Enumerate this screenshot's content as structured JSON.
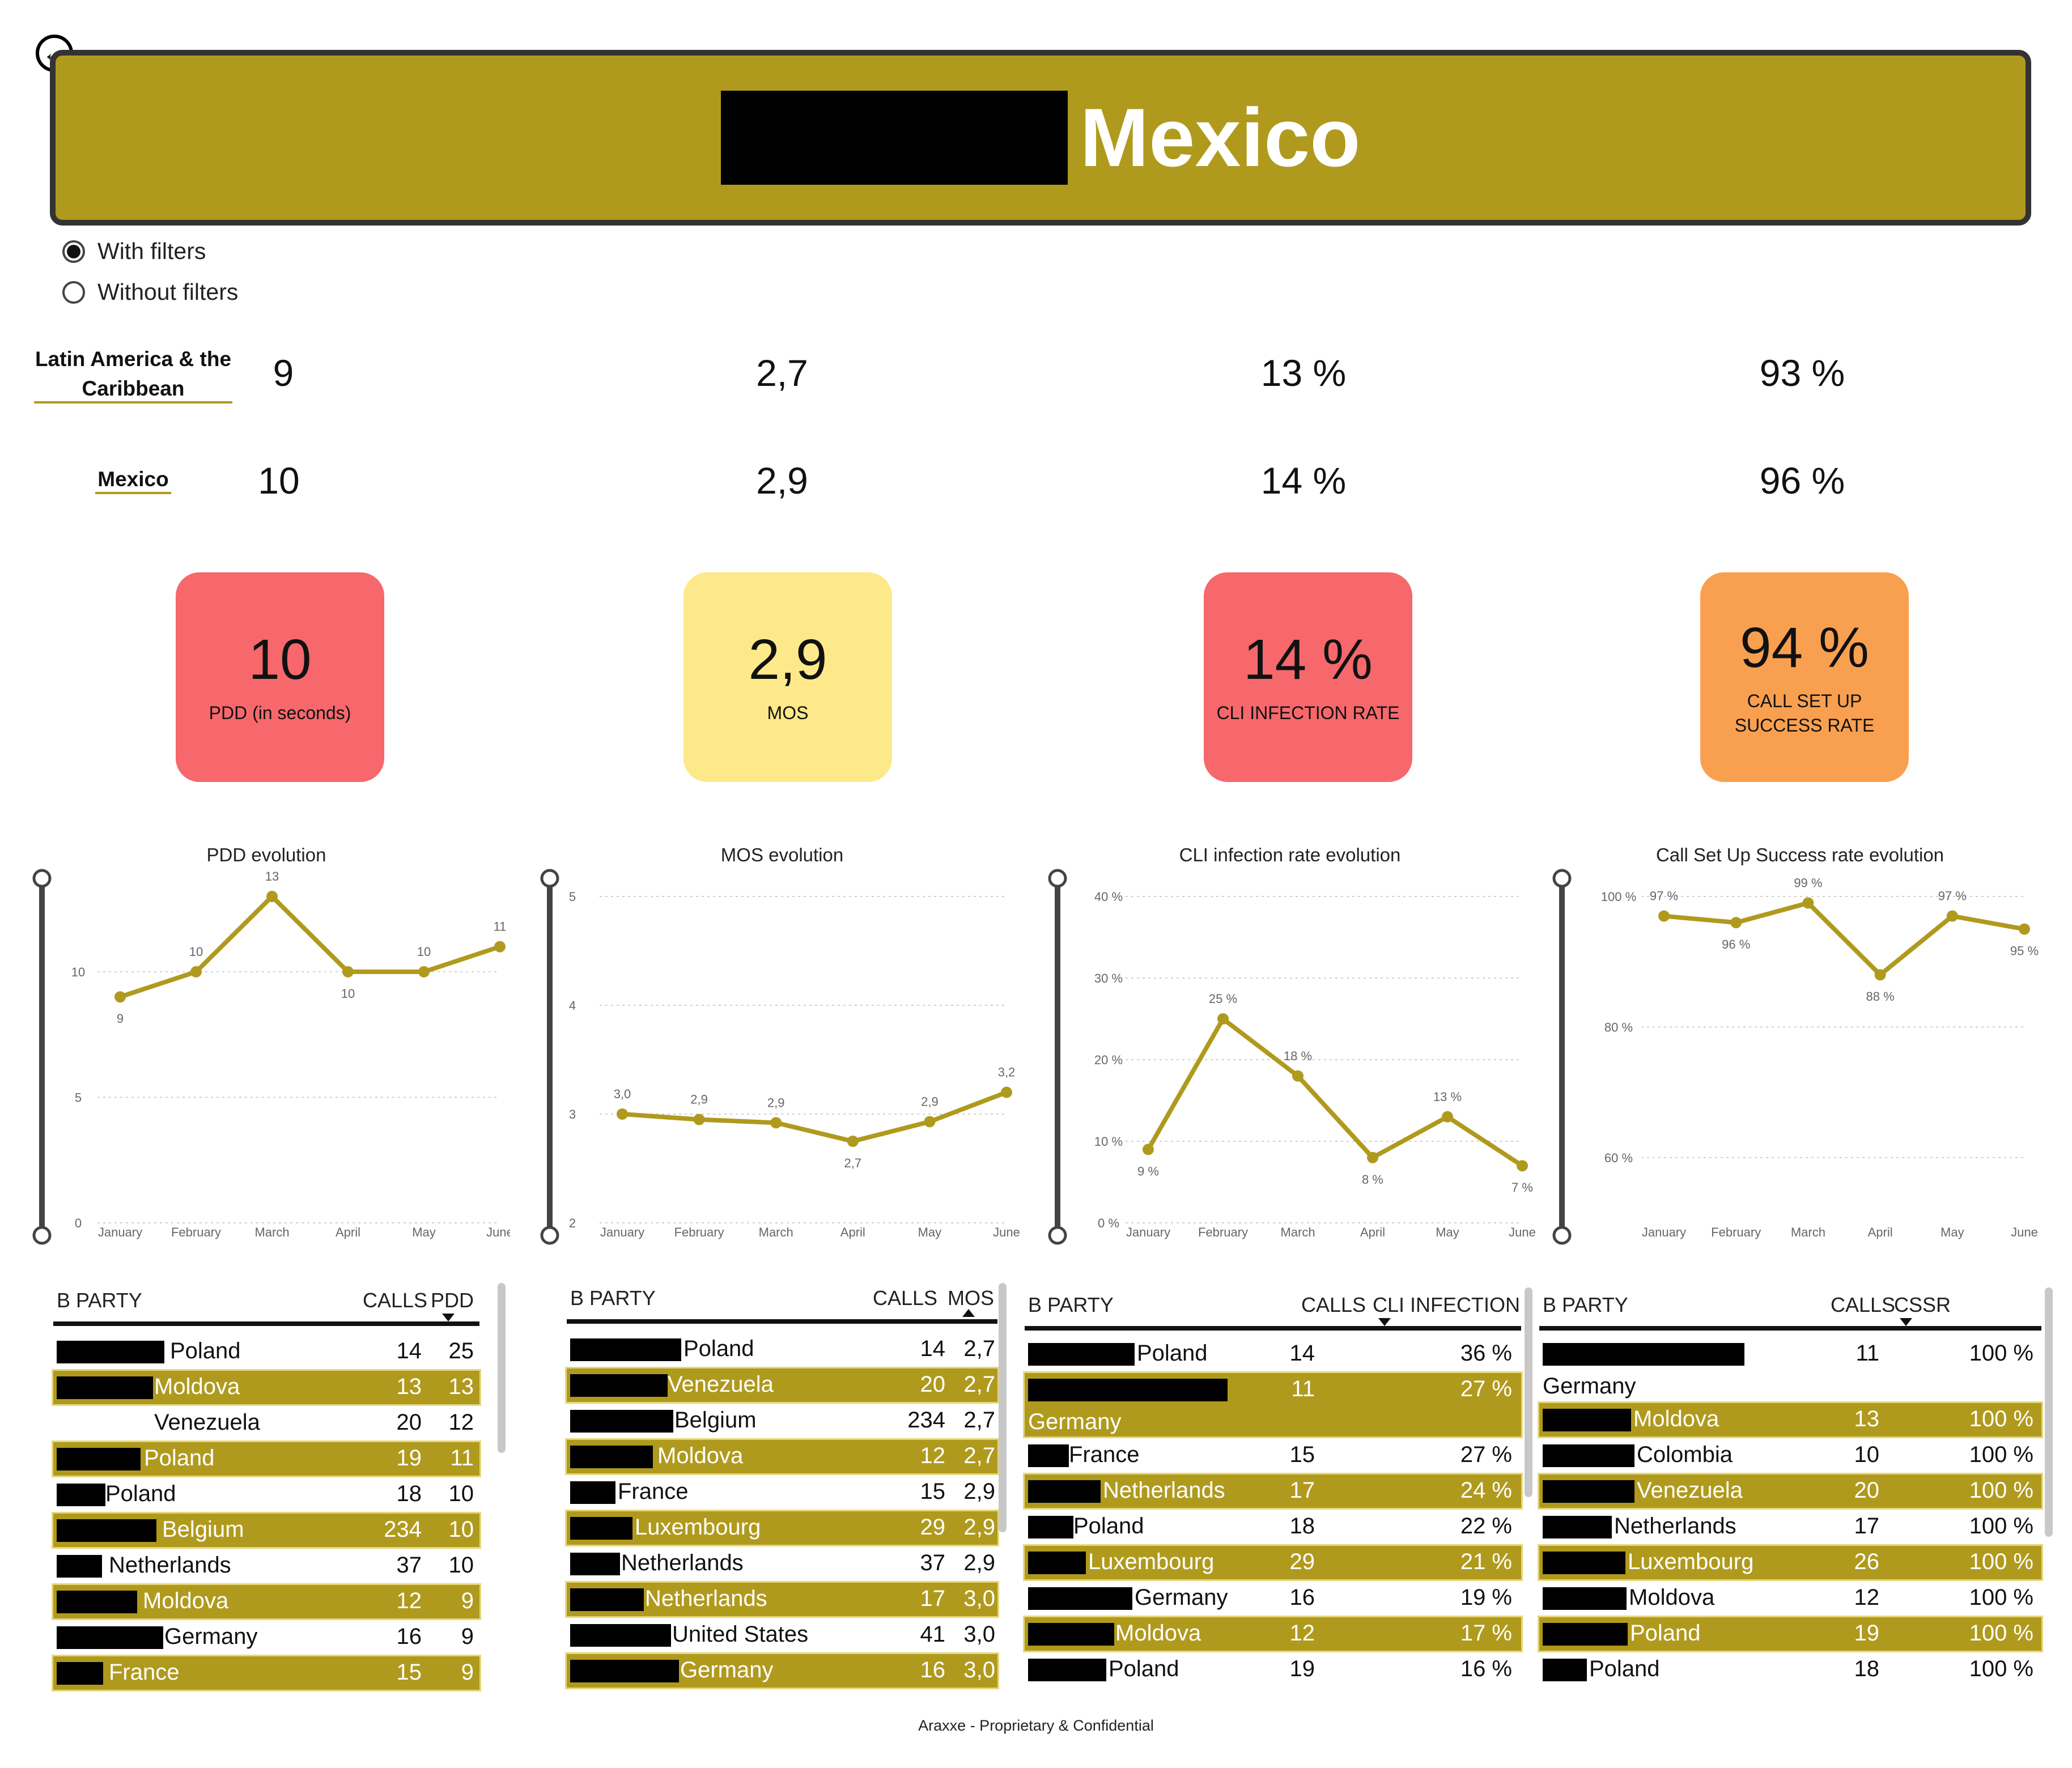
{
  "colors": {
    "accent": "#B09A1E",
    "red": "#F6686C",
    "yellow": "#FDE98A",
    "orange": "#F9A050",
    "dark": "#333333"
  },
  "header": {
    "title": "Mexico",
    "back_icon": "arrow-left-circle-icon"
  },
  "filters": [
    {
      "label": "With filters",
      "selected": true
    },
    {
      "label": "Without filters",
      "selected": false
    }
  ],
  "regions": [
    {
      "label": "Latin America & the Caribbean",
      "values": [
        "9",
        "2,7",
        "13 %",
        "93 %"
      ]
    },
    {
      "label": "Mexico",
      "values": [
        "10",
        "2,9",
        "14 %",
        "96 %"
      ]
    }
  ],
  "cards": [
    {
      "value": "10",
      "label": "PDD (in seconds)",
      "color": "#F6686C"
    },
    {
      "value": "2,9",
      "label": "MOS",
      "color": "#FDE98A"
    },
    {
      "value": "14 %",
      "label": "CLI INFECTION RATE",
      "color": "#F6686C"
    },
    {
      "value": "94 %",
      "label": "CALL SET UP\nSUCCESS RATE",
      "color": "#F9A050"
    }
  ],
  "chart_data": [
    {
      "type": "line",
      "title": "PDD evolution",
      "categories": [
        "January",
        "February",
        "March",
        "April",
        "May",
        "June"
      ],
      "values": [
        9,
        10,
        13,
        10,
        10,
        11
      ],
      "labels": [
        "9",
        "10",
        "13",
        "10",
        "10",
        "11"
      ],
      "ylim": [
        0,
        13
      ],
      "yticks": [
        0,
        5,
        10
      ],
      "ytick_labels": [
        "0",
        "5",
        "10"
      ],
      "grid": true
    },
    {
      "type": "line",
      "title": "MOS evolution",
      "categories": [
        "January",
        "February",
        "March",
        "April",
        "May",
        "June"
      ],
      "values": [
        3.0,
        2.95,
        2.92,
        2.75,
        2.93,
        3.2
      ],
      "labels": [
        "3,0",
        "2,9",
        "2,9",
        "2,7",
        "2,9",
        "3,2"
      ],
      "ylim": [
        2,
        5
      ],
      "yticks": [
        2,
        3,
        4,
        5
      ],
      "ytick_labels": [
        "2",
        "3",
        "4",
        "5"
      ],
      "grid": true
    },
    {
      "type": "line",
      "title": "CLI infection rate evolution",
      "categories": [
        "January",
        "February",
        "March",
        "April",
        "May",
        "June"
      ],
      "values": [
        9,
        25,
        18,
        8,
        13,
        7
      ],
      "labels": [
        "9 %",
        "25 %",
        "18 %",
        "8 %",
        "13 %",
        "7 %"
      ],
      "ylim": [
        0,
        40
      ],
      "yticks": [
        0,
        10,
        20,
        30,
        40
      ],
      "ytick_labels": [
        "0 %",
        "10 %",
        "20 %",
        "30 %",
        "40 %"
      ],
      "grid": true
    },
    {
      "type": "line",
      "title": "Call Set Up Success rate evolution",
      "categories": [
        "January",
        "February",
        "March",
        "April",
        "May",
        "June"
      ],
      "values": [
        97,
        96,
        99,
        88,
        97,
        95
      ],
      "labels": [
        "97 %",
        "96 %",
        "99 %",
        "88 %",
        "97 %",
        "95 %"
      ],
      "ylim": [
        50,
        100
      ],
      "yticks": [
        60,
        80,
        100
      ],
      "ytick_labels": [
        "60 %",
        "80 %",
        "100 %"
      ],
      "grid": true
    }
  ],
  "tables": [
    {
      "headers": [
        "B PARTY",
        "CALLS",
        "PDD"
      ],
      "rows": [
        {
          "name": "Poland",
          "calls": "14",
          "val": "25"
        },
        {
          "name": "Moldova",
          "calls": "13",
          "val": "13"
        },
        {
          "name": "Venezuela",
          "calls": "20",
          "val": "12"
        },
        {
          "name": "Poland",
          "calls": "19",
          "val": "11"
        },
        {
          "name": "Poland",
          "calls": "18",
          "val": "10"
        },
        {
          "name": "Belgium",
          "calls": "234",
          "val": "10"
        },
        {
          "name": "Netherlands",
          "calls": "37",
          "val": "10"
        },
        {
          "name": "Moldova",
          "calls": "12",
          "val": "9"
        },
        {
          "name": "Germany",
          "calls": "16",
          "val": "9"
        },
        {
          "name": "France",
          "calls": "15",
          "val": "9"
        }
      ]
    },
    {
      "headers": [
        "B PARTY",
        "CALLS",
        "MOS"
      ],
      "rows": [
        {
          "name": "Poland",
          "calls": "14",
          "val": "2,7"
        },
        {
          "name": "Venezuela",
          "calls": "20",
          "val": "2,7"
        },
        {
          "name": "Belgium",
          "calls": "234",
          "val": "2,7"
        },
        {
          "name": "Moldova",
          "calls": "12",
          "val": "2,7"
        },
        {
          "name": "France",
          "calls": "15",
          "val": "2,9"
        },
        {
          "name": "Luxembourg",
          "calls": "29",
          "val": "2,9"
        },
        {
          "name": "Netherlands",
          "calls": "37",
          "val": "2,9"
        },
        {
          "name": "Netherlands",
          "calls": "17",
          "val": "3,0"
        },
        {
          "name": "United States",
          "calls": "41",
          "val": "3,0"
        },
        {
          "name": "Germany",
          "calls": "16",
          "val": "3,0"
        }
      ]
    },
    {
      "headers": [
        "B PARTY",
        "CALLS",
        "CLI INFECTION"
      ],
      "rows": [
        {
          "name": "Poland",
          "calls": "14",
          "val": "36 %"
        },
        {
          "name": "Germany",
          "calls": "11",
          "val": "27 %"
        },
        {
          "name": "France",
          "calls": "15",
          "val": "27 %"
        },
        {
          "name": "Netherlands",
          "calls": "17",
          "val": "24 %"
        },
        {
          "name": "Poland",
          "calls": "18",
          "val": "22 %"
        },
        {
          "name": "Luxembourg",
          "calls": "29",
          "val": "21 %"
        },
        {
          "name": "Germany",
          "calls": "16",
          "val": "19 %"
        },
        {
          "name": "Moldova",
          "calls": "12",
          "val": "17 %"
        },
        {
          "name": "Poland",
          "calls": "19",
          "val": "16 %"
        }
      ]
    },
    {
      "headers": [
        "B PARTY",
        "CALLS",
        "CSSR"
      ],
      "rows": [
        {
          "name": "Germany",
          "calls": "11",
          "val": "100 %"
        },
        {
          "name": "Moldova",
          "calls": "13",
          "val": "100 %"
        },
        {
          "name": "Colombia",
          "calls": "10",
          "val": "100 %"
        },
        {
          "name": "Venezuela",
          "calls": "20",
          "val": "100 %"
        },
        {
          "name": "Netherlands",
          "calls": "17",
          "val": "100 %"
        },
        {
          "name": "Luxembourg",
          "calls": "26",
          "val": "100 %"
        },
        {
          "name": "Moldova",
          "calls": "12",
          "val": "100 %"
        },
        {
          "name": "Poland",
          "calls": "19",
          "val": "100 %"
        },
        {
          "name": "Poland",
          "calls": "18",
          "val": "100 %"
        }
      ]
    }
  ],
  "footer": "Araxxe - Proprietary & Confidential"
}
